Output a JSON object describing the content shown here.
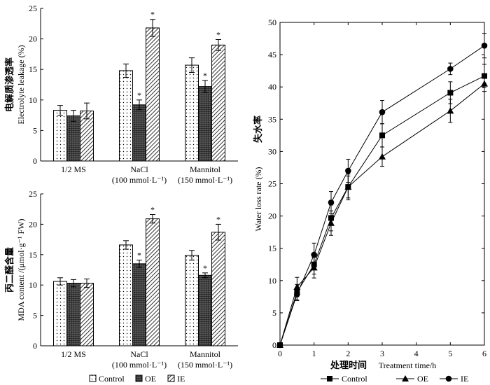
{
  "colors": {
    "ink": "#000000",
    "background": "#ffffff",
    "grey": "#333333"
  },
  "chart_data": [
    {
      "id": "leakage",
      "type": "bar",
      "ylabel_cn": "电解质渗透率",
      "ylabel_en": "Electrolyte leakage (%)",
      "ylim": [
        0,
        25
      ],
      "yticks": [
        0,
        5,
        10,
        15,
        20,
        25
      ],
      "categories": [
        {
          "line1": "1/2 MS",
          "line2": ""
        },
        {
          "line1": "NaCl",
          "line2": "(100 mmol·L⁻¹)"
        },
        {
          "line1": "Mannitol",
          "line2": "(150 mmol·L⁻¹)"
        }
      ],
      "series": [
        {
          "name": "Control",
          "pattern": "dots",
          "values": [
            8.3,
            14.8,
            15.7
          ],
          "errors": [
            0.8,
            1.1,
            1.2
          ],
          "sig": [
            "",
            "",
            ""
          ]
        },
        {
          "name": "OE",
          "pattern": "grid",
          "values": [
            7.4,
            9.2,
            12.2
          ],
          "errors": [
            0.9,
            0.8,
            1.0
          ],
          "sig": [
            "",
            "*",
            "*"
          ]
        },
        {
          "name": "IE",
          "pattern": "hatch",
          "values": [
            8.2,
            21.8,
            19.0
          ],
          "errors": [
            1.3,
            1.4,
            0.9
          ],
          "sig": [
            "",
            "*",
            "*"
          ]
        }
      ]
    },
    {
      "id": "mda",
      "type": "bar",
      "ylabel_cn": "丙二醛含量",
      "ylabel_en": "MDA content /(μmol·g⁻¹ FW)",
      "ylim": [
        0,
        25
      ],
      "yticks": [
        0,
        5,
        10,
        15,
        20,
        25
      ],
      "categories": [
        {
          "line1": "1/2 MS",
          "line2": ""
        },
        {
          "line1": "NaCl",
          "line2": "(100 mmol·L⁻¹)"
        },
        {
          "line1": "Mannitol",
          "line2": "(150 mmol·L⁻¹)"
        }
      ],
      "series": [
        {
          "name": "Control",
          "pattern": "dots",
          "values": [
            10.6,
            16.6,
            14.9
          ],
          "errors": [
            0.6,
            0.7,
            0.8
          ],
          "sig": [
            "",
            "",
            ""
          ]
        },
        {
          "name": "OE",
          "pattern": "grid",
          "values": [
            10.3,
            13.5,
            11.6
          ],
          "errors": [
            0.6,
            0.6,
            0.4
          ],
          "sig": [
            "",
            "*",
            "*"
          ]
        },
        {
          "name": "IE",
          "pattern": "hatch",
          "values": [
            10.3,
            20.9,
            18.7
          ],
          "errors": [
            0.7,
            0.7,
            1.3
          ],
          "sig": [
            "",
            "*",
            "*"
          ]
        }
      ]
    },
    {
      "id": "waterloss",
      "type": "line",
      "ylabel_cn": "失水率",
      "ylabel_en": "Water loss rate (%)",
      "xlabel_cn": "处理时间",
      "xlabel_en": "Treatment time/h",
      "xlim": [
        0,
        6
      ],
      "ylim": [
        0,
        50
      ],
      "xticks": [
        0,
        1,
        2,
        3,
        4,
        5,
        6
      ],
      "yticks": [
        0,
        5,
        10,
        15,
        20,
        25,
        30,
        35,
        40,
        45,
        50
      ],
      "x": [
        0,
        0.5,
        1,
        1.5,
        2,
        3,
        5,
        6
      ],
      "series": [
        {
          "name": "Control",
          "marker": "square",
          "values": [
            0,
            8.2,
            12.5,
            19.7,
            24.5,
            32.5,
            39.1,
            41.7
          ],
          "errors": [
            0,
            1.2,
            1.5,
            2.0,
            2.0,
            1.8,
            1.7,
            1.8
          ]
        },
        {
          "name": "OE",
          "marker": "triangle",
          "values": [
            0,
            9.0,
            12.0,
            18.9,
            24.5,
            29.2,
            36.3,
            40.5
          ],
          "errors": [
            0,
            1.5,
            1.6,
            1.9,
            1.7,
            1.5,
            1.8,
            1.2
          ]
        },
        {
          "name": "IE",
          "marker": "circle",
          "values": [
            0,
            7.9,
            14.0,
            22.1,
            27.0,
            36.1,
            42.8,
            46.4
          ],
          "errors": [
            0,
            1.0,
            1.8,
            1.7,
            1.8,
            1.8,
            0.9,
            1.9
          ]
        }
      ]
    }
  ],
  "legend_bars": [
    "Control",
    "OE",
    "IE"
  ],
  "legend_lines": [
    "Control",
    "OE",
    "IE"
  ]
}
